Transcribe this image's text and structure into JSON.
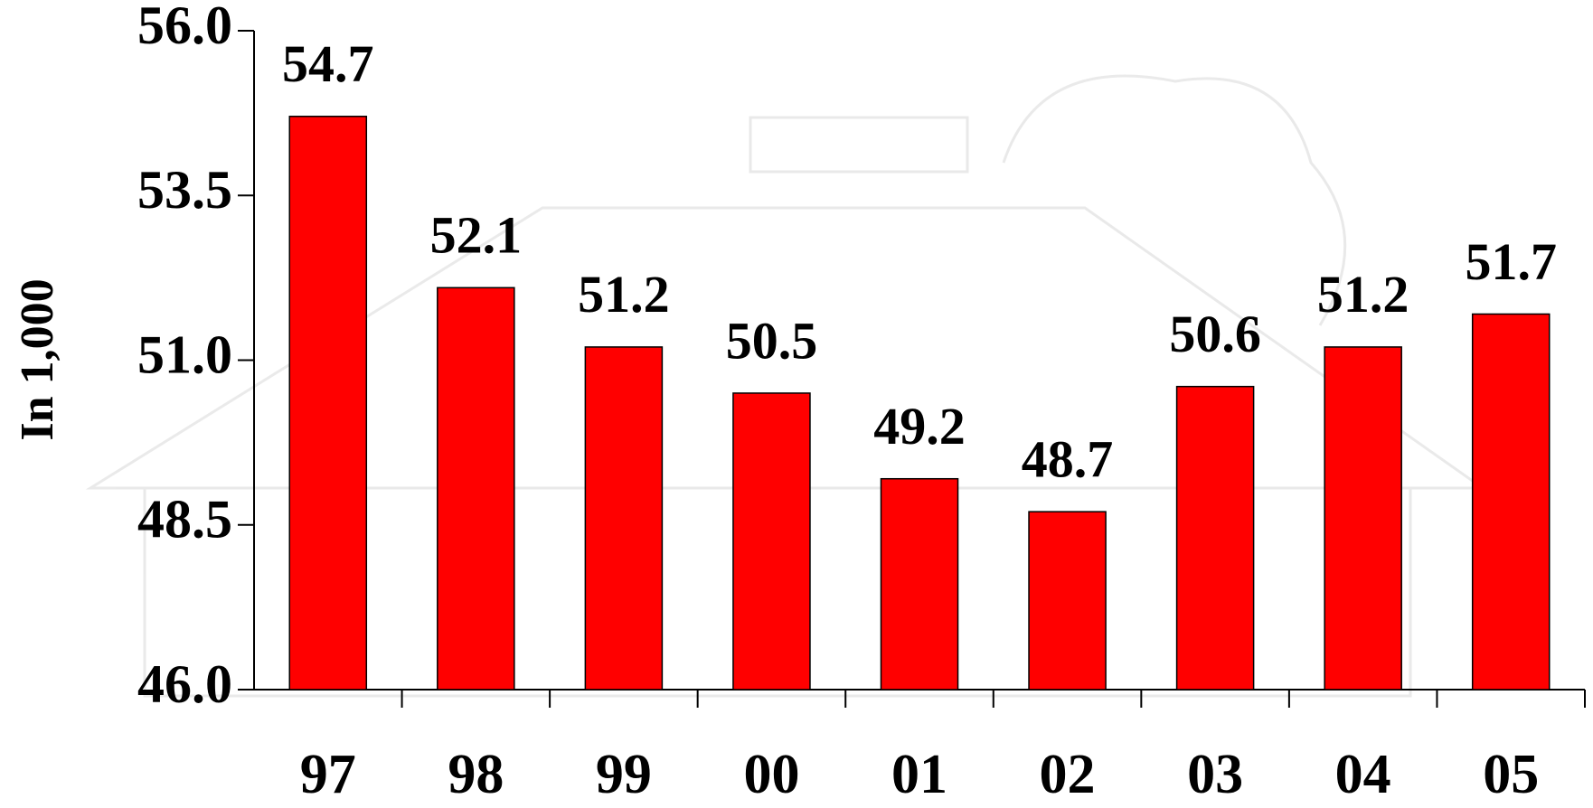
{
  "chart_data": {
    "type": "bar",
    "y_label": "In 1,000",
    "categories": [
      "97",
      "98",
      "99",
      "00",
      "01",
      "02",
      "03",
      "04",
      "05"
    ],
    "values": [
      54.7,
      52.1,
      51.2,
      50.5,
      49.2,
      48.7,
      50.6,
      51.2,
      51.7
    ],
    "color": "#ff0000",
    "ylim": [
      46,
      56
    ],
    "yticks": [
      {
        "value": 46,
        "label": "46.0"
      },
      48.5,
      {
        "value": 51,
        "label": "51.0"
      },
      53.5,
      {
        "value": 56,
        "label": "56.0"
      }
    ]
  }
}
